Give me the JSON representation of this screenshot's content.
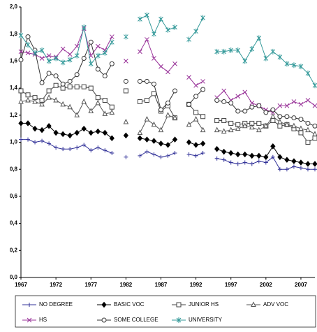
{
  "chart_data": {
    "type": "line",
    "x": [
      1967,
      1968,
      1969,
      1970,
      1971,
      1972,
      1973,
      1974,
      1975,
      1976,
      1977,
      1978,
      1979,
      1980,
      1981,
      1982,
      1983,
      1984,
      1985,
      1986,
      1987,
      1988,
      1989,
      1990,
      1991,
      1992,
      1993,
      1994,
      1995,
      1996,
      1997,
      1998,
      1999,
      2000,
      2001,
      2002,
      2003,
      2004,
      2005,
      2006,
      2007,
      2008,
      2009
    ],
    "xlim": [
      1967,
      2009
    ],
    "xticks": [
      1967,
      1972,
      1977,
      1982,
      1987,
      1992,
      1997,
      2002,
      2007
    ],
    "ylim": [
      0,
      2
    ],
    "yticks": [
      {
        "value": 0,
        "label": "0,0"
      },
      {
        "value": 0.2,
        "label": "0,2"
      },
      {
        "value": 0.4,
        "label": "0,4"
      },
      {
        "value": 0.6,
        "label": "0,6"
      },
      {
        "value": 0.8,
        "label": "0,8"
      },
      {
        "value": 1,
        "label": "1,0"
      },
      {
        "value": 1.2,
        "label": "1,2"
      },
      {
        "value": 1.4,
        "label": "1,4"
      },
      {
        "value": 1.6,
        "label": "1,6"
      },
      {
        "value": 1.8,
        "label": "1,8"
      },
      {
        "value": 2,
        "label": "2,0"
      }
    ],
    "grid": false,
    "legend": "bottom",
    "series": [
      {
        "name": "NO DEGREE",
        "color": "#333399",
        "marker": "plus",
        "values": [
          1.02,
          1.02,
          1.0,
          1.01,
          0.99,
          0.96,
          0.95,
          0.95,
          0.96,
          0.98,
          0.94,
          0.96,
          0.94,
          0.92,
          null,
          0.89,
          null,
          0.9,
          0.93,
          0.91,
          0.89,
          0.9,
          0.92,
          null,
          0.91,
          0.9,
          0.92,
          null,
          0.88,
          0.87,
          0.85,
          0.84,
          0.85,
          0.84,
          0.86,
          0.85,
          0.89,
          0.8,
          0.8,
          0.82,
          0.81,
          0.8,
          0.8
        ]
      },
      {
        "name": "BASIC VOC",
        "color": "#000000",
        "marker": "diamond",
        "values": [
          1.14,
          1.14,
          1.1,
          1.09,
          1.12,
          1.07,
          1.06,
          1.05,
          1.07,
          1.1,
          1.07,
          1.08,
          1.07,
          1.03,
          null,
          1.05,
          null,
          1.03,
          1.02,
          1.01,
          0.99,
          0.98,
          1.02,
          null,
          1.0,
          0.98,
          0.99,
          null,
          0.95,
          0.93,
          0.92,
          0.91,
          0.91,
          0.9,
          0.9,
          0.89,
          0.97,
          0.89,
          0.87,
          0.86,
          0.85,
          0.84,
          0.84
        ]
      },
      {
        "name": "JUNIOR HS",
        "color": "#444444",
        "marker": "square",
        "values": [
          1.38,
          1.35,
          1.33,
          1.31,
          1.38,
          1.42,
          1.4,
          1.41,
          1.41,
          1.41,
          1.4,
          1.33,
          1.31,
          1.26,
          null,
          1.38,
          null,
          1.3,
          1.31,
          1.36,
          1.23,
          1.27,
          1.18,
          null,
          1.28,
          1.22,
          1.19,
          null,
          1.16,
          1.16,
          1.14,
          1.13,
          1.14,
          1.14,
          1.14,
          1.12,
          1.16,
          1.12,
          1.13,
          1.1,
          1.07,
          1.0,
          1.03
        ]
      },
      {
        "name": "ADV VOC",
        "color": "#555555",
        "marker": "triangle",
        "values": [
          1.3,
          1.31,
          1.3,
          1.28,
          1.33,
          1.31,
          1.28,
          1.26,
          1.2,
          1.3,
          1.23,
          1.29,
          1.21,
          1.22,
          null,
          1.15,
          null,
          1.07,
          1.17,
          1.13,
          1.09,
          1.2,
          1.18,
          null,
          1.13,
          1.17,
          1.09,
          null,
          1.09,
          1.08,
          1.09,
          1.1,
          1.12,
          1.11,
          1.09,
          1.12,
          1.19,
          1.15,
          1.13,
          1.12,
          1.1,
          1.09,
          1.06
        ]
      },
      {
        "name": "HS",
        "color": "#993399",
        "marker": "cross",
        "values": [
          1.67,
          1.66,
          1.65,
          1.62,
          1.64,
          1.63,
          1.69,
          1.65,
          1.71,
          1.84,
          1.64,
          1.71,
          1.68,
          1.78,
          null,
          1.6,
          null,
          1.67,
          1.76,
          1.62,
          1.56,
          1.52,
          1.58,
          null,
          1.48,
          1.42,
          1.45,
          null,
          1.33,
          1.38,
          1.31,
          1.34,
          1.37,
          1.29,
          1.27,
          1.24,
          1.22,
          1.27,
          1.27,
          1.3,
          1.28,
          1.31,
          1.27
        ]
      },
      {
        "name": "SOME COLLEGE",
        "color": "#333333",
        "marker": "circle",
        "values": [
          1.61,
          1.78,
          1.68,
          1.44,
          1.51,
          1.49,
          1.43,
          1.45,
          1.5,
          1.62,
          1.74,
          1.54,
          1.49,
          1.58,
          null,
          1.45,
          null,
          1.45,
          1.45,
          1.43,
          1.24,
          1.29,
          1.38,
          null,
          1.28,
          1.34,
          1.39,
          null,
          1.31,
          1.3,
          1.29,
          1.23,
          1.23,
          1.26,
          1.27,
          1.22,
          1.24,
          1.19,
          1.19,
          1.18,
          1.17,
          1.14,
          1.12
        ]
      },
      {
        "name": "UNIVERSITY",
        "color": "#339999",
        "marker": "star",
        "values": [
          1.79,
          1.72,
          1.66,
          1.68,
          1.6,
          1.62,
          1.59,
          1.61,
          1.64,
          1.85,
          1.58,
          1.64,
          1.66,
          1.74,
          null,
          1.78,
          null,
          1.91,
          1.94,
          1.8,
          1.91,
          1.83,
          1.85,
          null,
          1.76,
          1.82,
          1.92,
          null,
          1.67,
          1.67,
          1.68,
          1.68,
          1.6,
          1.69,
          1.77,
          1.62,
          1.67,
          1.63,
          1.58,
          1.57,
          1.56,
          1.51,
          1.42
        ]
      }
    ]
  }
}
